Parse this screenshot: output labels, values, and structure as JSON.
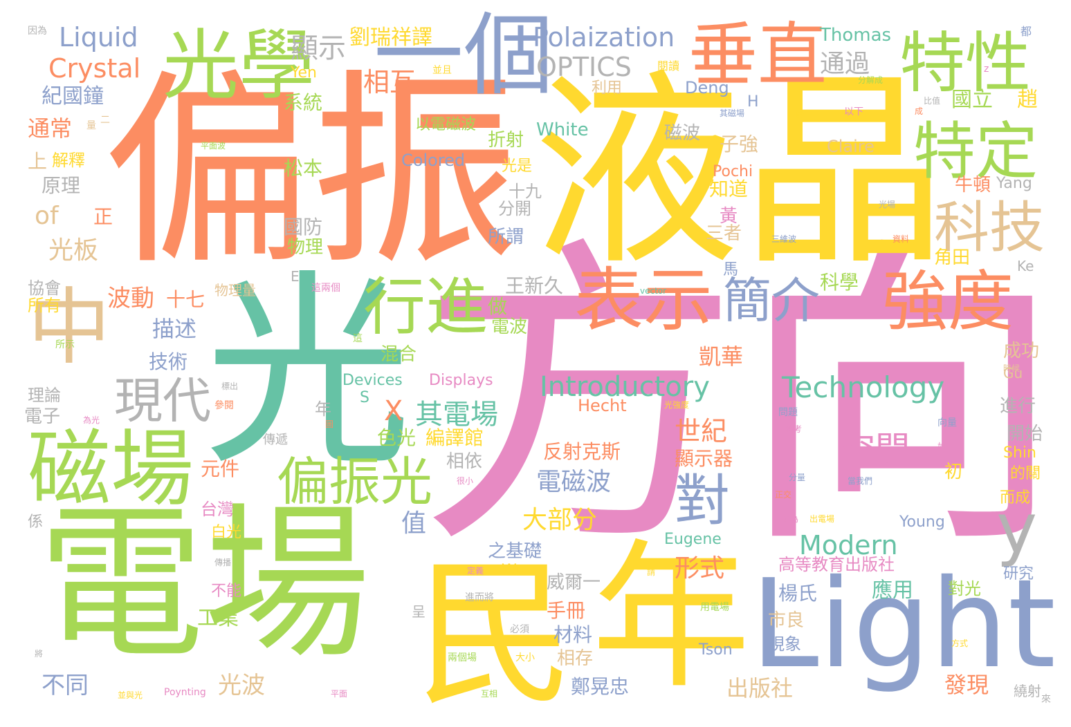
{
  "palette": {
    "coral": "#fc8d62",
    "yellow": "#ffd92f",
    "green": "#a6d854",
    "teal": "#66c2a5",
    "blue": "#8da0cb",
    "pink": "#e78ac3",
    "tan": "#e5c494",
    "gray": "#b3b3b3"
  },
  "words": [
    {
      "text": "方向",
      "color": "pink"
    },
    {
      "text": "偏振",
      "color": "coral"
    },
    {
      "text": "液晶",
      "color": "yellow"
    },
    {
      "text": "光",
      "color": "teal"
    },
    {
      "text": "電場",
      "color": "green"
    },
    {
      "text": "Light",
      "color": "blue"
    },
    {
      "text": "年",
      "color": "yellow"
    },
    {
      "text": "民",
      "color": "yellow"
    },
    {
      "text": "中",
      "color": "tan"
    },
    {
      "text": "磁場",
      "color": "green"
    },
    {
      "text": "一個",
      "color": "blue"
    },
    {
      "text": "光學",
      "color": "green"
    },
    {
      "text": "垂直",
      "color": "coral"
    },
    {
      "text": "特性",
      "color": "green"
    },
    {
      "text": "特定",
      "color": "green"
    },
    {
      "text": "科技",
      "color": "tan"
    },
    {
      "text": "強度",
      "color": "coral"
    },
    {
      "text": "表示",
      "color": "coral"
    },
    {
      "text": "行進",
      "color": "green"
    },
    {
      "text": "簡介",
      "color": "blue"
    },
    {
      "text": "偏振光",
      "color": "green"
    },
    {
      "text": "對",
      "color": "blue"
    },
    {
      "text": "現代",
      "color": "gray"
    },
    {
      "text": "y",
      "color": "gray"
    },
    {
      "text": "空間",
      "color": "pink"
    },
    {
      "text": "Technology",
      "color": "teal"
    },
    {
      "text": "Introductory",
      "color": "teal"
    },
    {
      "text": "Modern",
      "color": "teal"
    },
    {
      "text": "Liquid",
      "color": "blue"
    },
    {
      "text": "Crystal",
      "color": "coral"
    },
    {
      "text": "Polaization",
      "color": "blue"
    },
    {
      "text": "OPTICS",
      "color": "gray"
    },
    {
      "text": "顯示",
      "color": "gray"
    },
    {
      "text": "劉瑞祥譯",
      "color": "yellow"
    },
    {
      "text": "Thomas",
      "color": "teal"
    },
    {
      "text": "通過",
      "color": "gray"
    },
    {
      "text": "Yen",
      "color": "yellow"
    },
    {
      "text": "相互",
      "color": "coral"
    },
    {
      "text": "利用",
      "color": "tan"
    },
    {
      "text": "Deng",
      "color": "blue"
    },
    {
      "text": "系統",
      "color": "green"
    },
    {
      "text": "紀國鐘",
      "color": "blue"
    },
    {
      "text": "通常",
      "color": "coral"
    },
    {
      "text": "解釋",
      "color": "yellow"
    },
    {
      "text": "上",
      "color": "tan"
    },
    {
      "text": "原理",
      "color": "gray"
    },
    {
      "text": "of",
      "color": "tan"
    },
    {
      "text": "正",
      "color": "coral"
    },
    {
      "text": "光板",
      "color": "tan"
    },
    {
      "text": "協會",
      "color": "gray"
    },
    {
      "text": "所有",
      "color": "yellow"
    },
    {
      "text": "以電磁波",
      "color": "green"
    },
    {
      "text": "White",
      "color": "teal"
    },
    {
      "text": "磁波",
      "color": "gray"
    },
    {
      "text": "子強",
      "color": "tan"
    },
    {
      "text": "Claire",
      "color": "tan"
    },
    {
      "text": "Colored",
      "color": "blue"
    },
    {
      "text": "折射",
      "color": "green"
    },
    {
      "text": "光是",
      "color": "yellow"
    },
    {
      "text": "松本",
      "color": "green"
    },
    {
      "text": "十九",
      "color": "gray"
    },
    {
      "text": "分開",
      "color": "gray"
    },
    {
      "text": "國防",
      "color": "gray"
    },
    {
      "text": "物理",
      "color": "green"
    },
    {
      "text": "所謂",
      "color": "blue"
    },
    {
      "text": "Pochi",
      "color": "coral"
    },
    {
      "text": "知道",
      "color": "yellow"
    },
    {
      "text": "黃",
      "color": "pink"
    },
    {
      "text": "三者",
      "color": "tan"
    },
    {
      "text": "波動",
      "color": "coral"
    },
    {
      "text": "十七",
      "color": "coral"
    },
    {
      "text": "描述",
      "color": "blue"
    },
    {
      "text": "技術",
      "color": "blue"
    },
    {
      "text": "王新久",
      "color": "gray"
    },
    {
      "text": "做",
      "color": "green"
    },
    {
      "text": "電波",
      "color": "green"
    },
    {
      "text": "科學",
      "color": "green"
    },
    {
      "text": "凱華",
      "color": "coral"
    },
    {
      "text": "混合",
      "color": "green"
    },
    {
      "text": "Devices",
      "color": "teal"
    },
    {
      "text": "Displays",
      "color": "pink"
    },
    {
      "text": "其電場",
      "color": "teal"
    },
    {
      "text": "X",
      "color": "coral"
    },
    {
      "text": "Hecht",
      "color": "coral"
    },
    {
      "text": "世紀",
      "color": "coral"
    },
    {
      "text": "顯示器",
      "color": "coral"
    },
    {
      "text": "編譯館",
      "color": "yellow"
    },
    {
      "text": "色光",
      "color": "green"
    },
    {
      "text": "反射克斯",
      "color": "coral"
    },
    {
      "text": "電磁波",
      "color": "blue"
    },
    {
      "text": "大部分",
      "color": "yellow"
    },
    {
      "text": "值",
      "color": "blue"
    },
    {
      "text": "之基礎",
      "color": "blue"
    },
    {
      "text": "Eugene",
      "color": "teal"
    },
    {
      "text": "Young",
      "color": "blue"
    },
    {
      "text": "形式",
      "color": "coral"
    },
    {
      "text": "高等教育出版社",
      "color": "pink"
    },
    {
      "text": "Wu",
      "color": "yellow"
    },
    {
      "text": "威爾一",
      "color": "gray"
    },
    {
      "text": "楊氏",
      "color": "blue"
    },
    {
      "text": "應用",
      "color": "teal"
    },
    {
      "text": "對光",
      "color": "green"
    },
    {
      "text": "研究",
      "color": "blue"
    },
    {
      "text": "手冊",
      "color": "coral"
    },
    {
      "text": "材料",
      "color": "blue"
    },
    {
      "text": "相存",
      "color": "tan"
    },
    {
      "text": "市良",
      "color": "tan"
    },
    {
      "text": "現象",
      "color": "blue"
    },
    {
      "text": "Tson",
      "color": "blue"
    },
    {
      "text": "鄭晃忠",
      "color": "blue"
    },
    {
      "text": "出版社",
      "color": "tan"
    },
    {
      "text": "發現",
      "color": "coral"
    },
    {
      "text": "繞射",
      "color": "gray"
    },
    {
      "text": "不同",
      "color": "blue"
    },
    {
      "text": "光波",
      "color": "tan"
    },
    {
      "text": "工業",
      "color": "green"
    },
    {
      "text": "不能",
      "color": "pink"
    },
    {
      "text": "白光",
      "color": "yellow"
    },
    {
      "text": "台灣",
      "color": "pink"
    },
    {
      "text": "元件",
      "color": "coral"
    },
    {
      "text": "理論",
      "color": "gray"
    },
    {
      "text": "電子",
      "color": "gray"
    },
    {
      "text": "係",
      "color": "gray"
    },
    {
      "text": "國立",
      "color": "green"
    },
    {
      "text": "趙",
      "color": "yellow"
    },
    {
      "text": "Yang",
      "color": "gray"
    },
    {
      "text": "牛頓",
      "color": "coral"
    },
    {
      "text": "角田",
      "color": "yellow"
    },
    {
      "text": "Ke",
      "color": "gray"
    },
    {
      "text": "成功",
      "color": "tan"
    },
    {
      "text": "Gu",
      "color": "tan"
    },
    {
      "text": "進行",
      "color": "gray"
    },
    {
      "text": "開始",
      "color": "gray"
    },
    {
      "text": "Shin",
      "color": "yellow"
    },
    {
      "text": "的關",
      "color": "yellow"
    },
    {
      "text": "而成",
      "color": "yellow"
    },
    {
      "text": "初",
      "color": "yellow"
    },
    {
      "text": "相依",
      "color": "gray"
    },
    {
      "text": "年",
      "color": "gray"
    },
    {
      "text": "S",
      "color": "teal"
    },
    {
      "text": "馬",
      "color": "blue"
    },
    {
      "text": "H",
      "color": "blue"
    },
    {
      "text": "E",
      "color": "gray"
    },
    {
      "text": "因為",
      "color": "gray"
    },
    {
      "text": "都",
      "color": "blue"
    },
    {
      "text": "量",
      "color": "tan"
    },
    {
      "text": "二",
      "color": "tan"
    },
    {
      "text": "並且",
      "color": "yellow"
    },
    {
      "text": "閱讀",
      "color": "yellow"
    },
    {
      "text": "z",
      "color": "pink"
    },
    {
      "text": "分解成",
      "color": "green"
    },
    {
      "text": "比值",
      "color": "gray"
    },
    {
      "text": "其磁場",
      "color": "blue"
    },
    {
      "text": "於",
      "color": "yellow"
    },
    {
      "text": "以下",
      "color": "pink"
    },
    {
      "text": "成",
      "color": "coral"
    },
    {
      "text": "平面波",
      "color": "green"
    },
    {
      "text": "光場",
      "color": "gray"
    },
    {
      "text": "三維波",
      "color": "blue"
    },
    {
      "text": "資料",
      "color": "coral"
    },
    {
      "text": "vector",
      "color": "teal"
    },
    {
      "text": "物理量",
      "color": "tan"
    },
    {
      "text": "這兩個",
      "color": "pink"
    },
    {
      "text": "所示",
      "color": "green"
    },
    {
      "text": "這",
      "color": "green"
    },
    {
      "text": "標出",
      "color": "gray"
    },
    {
      "text": "參閱",
      "color": "coral"
    },
    {
      "text": "為光",
      "color": "pink"
    },
    {
      "text": "圖",
      "color": "coral"
    },
    {
      "text": "光強度",
      "color": "yellow"
    },
    {
      "text": "時候",
      "color": "tan"
    },
    {
      "text": "問題",
      "color": "blue"
    },
    {
      "text": "參考",
      "color": "pink"
    },
    {
      "text": "向量",
      "color": "blue"
    },
    {
      "text": "如下",
      "color": "pink"
    },
    {
      "text": "當我們",
      "color": "blue"
    },
    {
      "text": "分量",
      "color": "blue"
    },
    {
      "text": "正交",
      "color": "coral"
    },
    {
      "text": "稱為",
      "color": "pink"
    },
    {
      "text": "出電場",
      "color": "yellow"
    },
    {
      "text": "傳遞",
      "color": "gray"
    },
    {
      "text": "很小",
      "color": "pink"
    },
    {
      "text": "傳播",
      "color": "gray"
    },
    {
      "text": "定義",
      "color": "pink"
    },
    {
      "text": "請",
      "color": "yellow"
    },
    {
      "text": "進而將",
      "color": "gray"
    },
    {
      "text": "呈",
      "color": "gray"
    },
    {
      "text": "用電場",
      "color": "green"
    },
    {
      "text": "必須",
      "color": "gray"
    },
    {
      "text": "兩個場",
      "color": "green"
    },
    {
      "text": "大小",
      "color": "yellow"
    },
    {
      "text": "方式",
      "color": "yellow"
    },
    {
      "text": "將",
      "color": "gray"
    },
    {
      "text": "並與光",
      "color": "yellow"
    },
    {
      "text": "Poynting",
      "color": "pink"
    },
    {
      "text": "平面",
      "color": "pink"
    },
    {
      "text": "互相",
      "color": "green"
    },
    {
      "text": "來",
      "color": "gray"
    }
  ]
}
